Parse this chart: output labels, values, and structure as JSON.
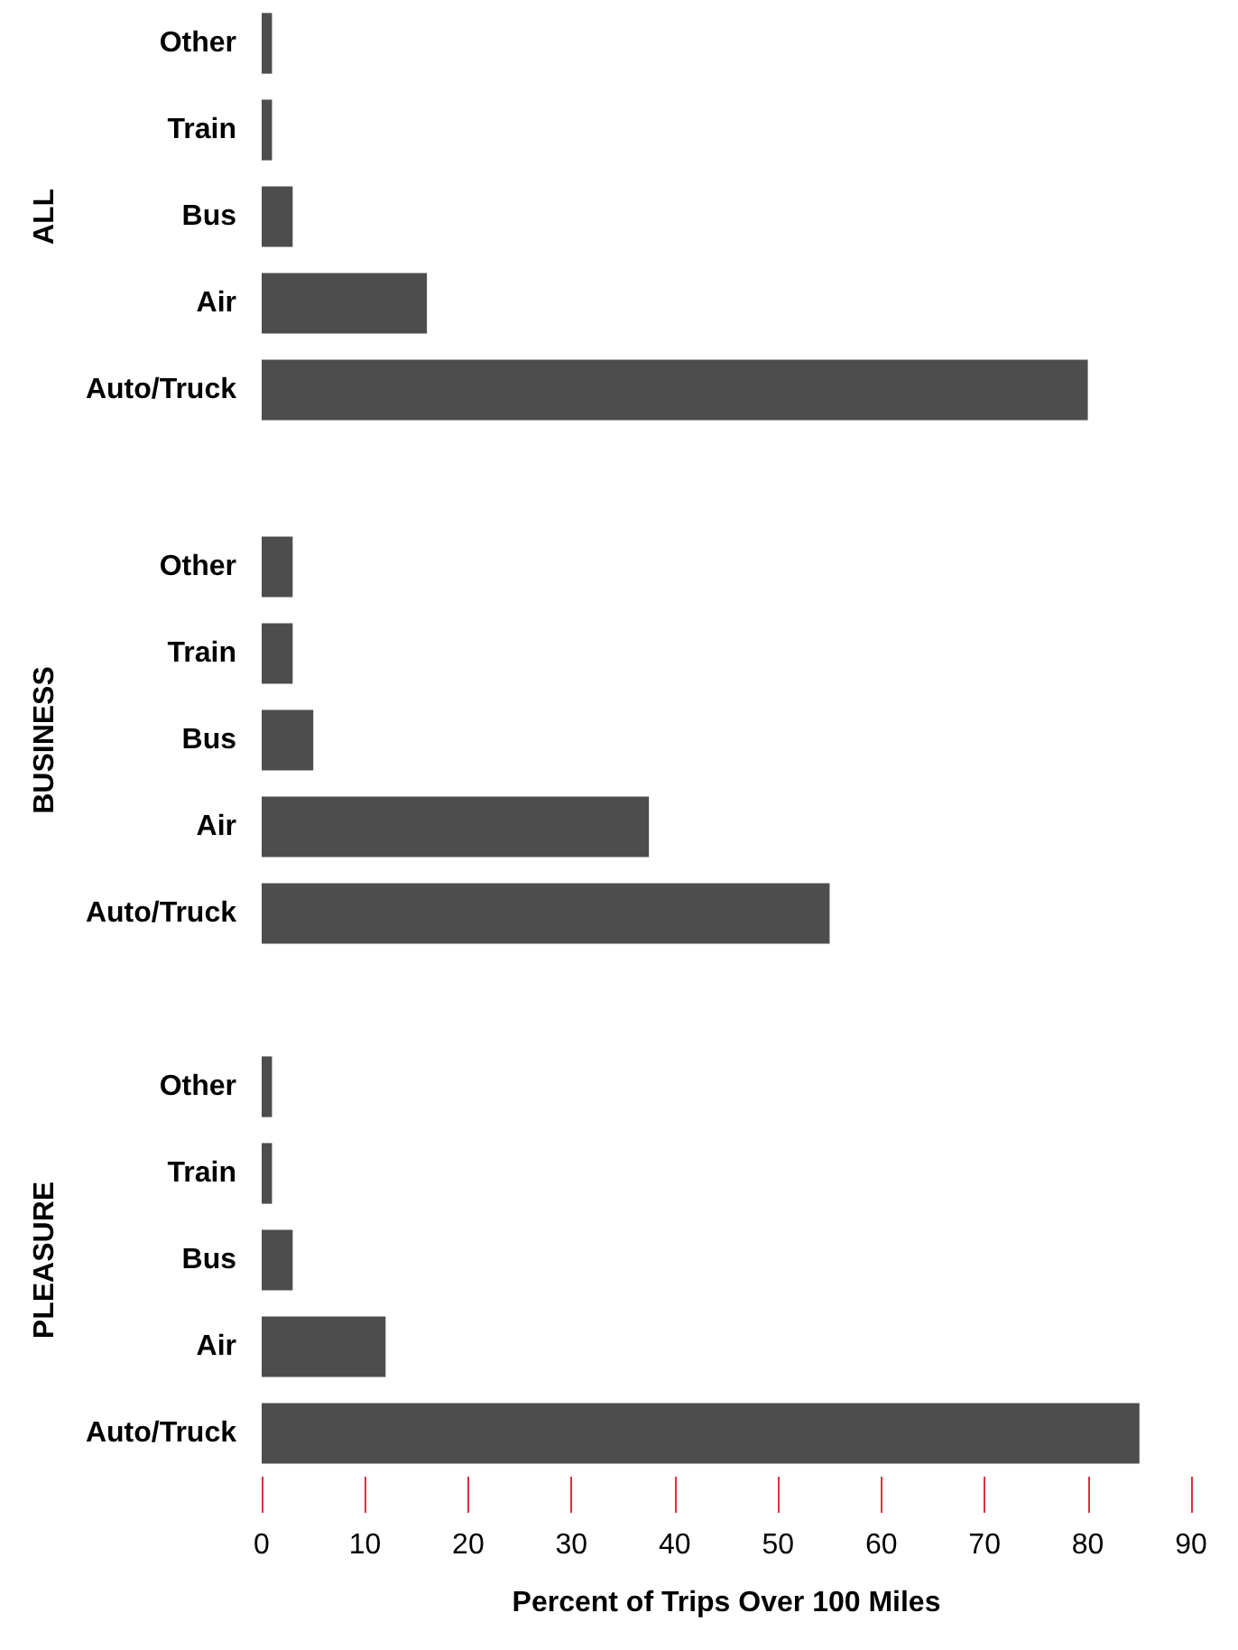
{
  "chart_data": [
    {
      "type": "bar",
      "orientation": "horizontal",
      "ylabel": "ALL",
      "categories": [
        "Other",
        "Train",
        "Bus",
        "Air",
        "Auto/Truck"
      ],
      "values": [
        1,
        1,
        3,
        16,
        80
      ],
      "color": "#4d4d4d",
      "xlim": [
        0,
        90
      ],
      "tick_labels": "y"
    },
    {
      "type": "bar",
      "orientation": "horizontal",
      "ylabel": "BUSINESS",
      "categories": [
        "Other",
        "Train",
        "Bus",
        "Air",
        "Auto/Truck"
      ],
      "values": [
        3,
        3,
        5,
        37.5,
        55
      ],
      "color": "#4d4d4d",
      "xlim": [
        0,
        90
      ],
      "tick_labels": "y"
    },
    {
      "type": "bar",
      "orientation": "horizontal",
      "ylabel": "PLEASURE",
      "xlabel": "Percent of Trips Over 100 Miles",
      "categories": [
        "Other",
        "Train",
        "Bus",
        "Air",
        "Auto/Truck"
      ],
      "values": [
        1,
        1,
        3,
        12,
        85
      ],
      "color": "#4d4d4d",
      "xlim": [
        0,
        90
      ],
      "xticks": [
        0,
        10,
        20,
        30,
        40,
        50,
        60,
        70,
        80,
        90
      ]
    }
  ]
}
